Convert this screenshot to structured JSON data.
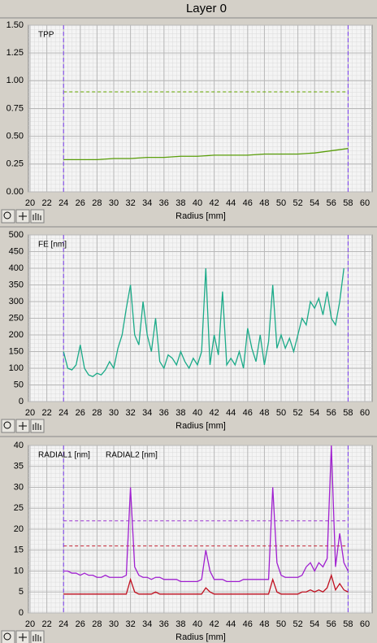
{
  "title": "Layer 0",
  "chart_data": [
    {
      "type": "line",
      "xlabel": "Radius [mm]",
      "xlim": [
        20,
        60
      ],
      "xticks": [
        20,
        22,
        24,
        26,
        28,
        30,
        32,
        34,
        36,
        38,
        40,
        42,
        44,
        46,
        48,
        50,
        52,
        54,
        56,
        58,
        60
      ],
      "ylim": [
        0,
        1.5
      ],
      "yticks": [
        {
          "value": 0,
          "label": "0.00"
        },
        {
          "value": 0.25,
          "label": "0.25"
        },
        {
          "value": 0.5,
          "label": "0.50"
        },
        {
          "value": 0.75,
          "label": "0.75"
        },
        {
          "value": 1,
          "label": "1.00"
        },
        {
          "value": 1.25,
          "label": "1.25"
        },
        {
          "value": 1.5,
          "label": "1.50"
        }
      ],
      "grid": true,
      "x_markers": [
        24,
        58
      ],
      "x_marker_color": "#7a3cf0",
      "reference_lines": [
        {
          "value": 0.9,
          "color": "#66aa00"
        }
      ],
      "x": [
        24,
        26,
        28,
        30,
        32,
        34,
        36,
        38,
        40,
        42,
        44,
        46,
        48,
        50,
        52,
        54,
        56,
        58
      ],
      "series": [
        {
          "name": "TPP",
          "color": "#5a9e0a",
          "values": [
            0.29,
            0.29,
            0.29,
            0.3,
            0.3,
            0.31,
            0.31,
            0.32,
            0.32,
            0.33,
            0.33,
            0.33,
            0.34,
            0.34,
            0.34,
            0.35,
            0.37,
            0.39
          ]
        }
      ]
    },
    {
      "type": "line",
      "xlabel": "Radius [mm]",
      "xlim": [
        20,
        60
      ],
      "xticks": [
        20,
        22,
        24,
        26,
        28,
        30,
        32,
        34,
        36,
        38,
        40,
        42,
        44,
        46,
        48,
        50,
        52,
        54,
        56,
        58,
        60
      ],
      "ylim": [
        0,
        500
      ],
      "yticks": [
        0,
        50,
        100,
        150,
        200,
        250,
        300,
        350,
        400,
        450,
        500
      ],
      "grid": true,
      "x_markers": [
        24,
        58
      ],
      "x_marker_color": "#7a3cf0",
      "reference_lines": [],
      "x": [
        24,
        24.5,
        25,
        25.5,
        26,
        26.5,
        27,
        27.5,
        28,
        28.5,
        29,
        29.5,
        30,
        30.5,
        31,
        31.5,
        32,
        32.5,
        33,
        33.5,
        34,
        34.5,
        35,
        35.5,
        36,
        36.5,
        37,
        37.5,
        38,
        38.5,
        39,
        39.5,
        40,
        40.5,
        41,
        41.5,
        42,
        42.5,
        43,
        43.5,
        44,
        44.5,
        45,
        45.5,
        46,
        46.5,
        47,
        47.5,
        48,
        48.5,
        49,
        49.5,
        50,
        50.5,
        51,
        51.5,
        52,
        52.5,
        53,
        53.5,
        54,
        54.5,
        55,
        55.5,
        56,
        56.5,
        57,
        57.5
      ],
      "series": [
        {
          "name": "FE [nm]",
          "color": "#1aaa88",
          "values": [
            150,
            100,
            95,
            110,
            170,
            100,
            80,
            75,
            85,
            80,
            95,
            120,
            100,
            160,
            200,
            280,
            350,
            200,
            170,
            300,
            200,
            150,
            250,
            120,
            100,
            140,
            130,
            110,
            150,
            120,
            100,
            130,
            110,
            150,
            400,
            110,
            200,
            140,
            330,
            110,
            130,
            110,
            150,
            100,
            220,
            160,
            120,
            200,
            110,
            180,
            350,
            160,
            200,
            160,
            190,
            150,
            200,
            250,
            230,
            300,
            280,
            310,
            260,
            330,
            250,
            230,
            300,
            400
          ]
        }
      ]
    },
    {
      "type": "line",
      "xlabel": "Radius [mm]",
      "xlim": [
        20,
        60
      ],
      "xticks": [
        20,
        22,
        24,
        26,
        28,
        30,
        32,
        34,
        36,
        38,
        40,
        42,
        44,
        46,
        48,
        50,
        52,
        54,
        56,
        58,
        60
      ],
      "ylim": [
        0,
        40
      ],
      "yticks": [
        0,
        5,
        10,
        15,
        20,
        25,
        30,
        35,
        40
      ],
      "grid": true,
      "x_markers": [
        24,
        58
      ],
      "x_marker_color": "#7a3cf0",
      "reference_lines": [
        {
          "value": 22,
          "color": "#9a30d0"
        },
        {
          "value": 16,
          "color": "#c02030"
        }
      ],
      "x": [
        24,
        24.5,
        25,
        25.5,
        26,
        26.5,
        27,
        27.5,
        28,
        28.5,
        29,
        29.5,
        30,
        30.5,
        31,
        31.5,
        32,
        32.5,
        33,
        33.5,
        34,
        34.5,
        35,
        35.5,
        36,
        36.5,
        37,
        37.5,
        38,
        38.5,
        39,
        39.5,
        40,
        40.5,
        41,
        41.5,
        42,
        42.5,
        43,
        43.5,
        44,
        44.5,
        45,
        45.5,
        46,
        46.5,
        47,
        47.5,
        48,
        48.5,
        49,
        49.5,
        50,
        50.5,
        51,
        51.5,
        52,
        52.5,
        53,
        53.5,
        54,
        54.5,
        55,
        55.5,
        56,
        56.5,
        57,
        57.5,
        58
      ],
      "series": [
        {
          "name": "RADIAL1 [nm]",
          "color": "#a020d0",
          "values": [
            10,
            10,
            9.5,
            9.5,
            9,
            9.5,
            9,
            9,
            8.5,
            8.5,
            9,
            8.5,
            8.5,
            8.5,
            8.5,
            9,
            30,
            11,
            9,
            8.5,
            8.5,
            8,
            8.5,
            8.5,
            8,
            8,
            8,
            8,
            7.5,
            7.5,
            7.5,
            7.5,
            7.5,
            8,
            15,
            10,
            8,
            8,
            8,
            7.5,
            7.5,
            7.5,
            7.5,
            8,
            8,
            8,
            8,
            8,
            8,
            8,
            30,
            12,
            9,
            8.5,
            8.5,
            8.5,
            8.5,
            9,
            11,
            12,
            10,
            12,
            11,
            13,
            40,
            11,
            19,
            12,
            10
          ]
        },
        {
          "name": "RADIAL2 [nm]",
          "color": "#c01020",
          "values": [
            4.5,
            4.5,
            4.5,
            4.5,
            4.5,
            4.5,
            4.5,
            4.5,
            4.5,
            4.5,
            4.5,
            4.5,
            4.5,
            4.5,
            4.5,
            4.5,
            8,
            5,
            4.5,
            4.5,
            4.5,
            4.5,
            5,
            4.5,
            4.5,
            4.5,
            4.5,
            4.5,
            4.5,
            4.5,
            4.5,
            4.5,
            4.5,
            4.5,
            6,
            5,
            4.5,
            4.5,
            4.5,
            4.5,
            4.5,
            4.5,
            4.5,
            4.5,
            4.5,
            4.5,
            4.5,
            4.5,
            4.5,
            4.5,
            8,
            5,
            4.5,
            4.5,
            4.5,
            4.5,
            4.5,
            5,
            5,
            5.5,
            5,
            5.5,
            5,
            6,
            9,
            5.5,
            7,
            5.5,
            5
          ]
        }
      ]
    }
  ]
}
